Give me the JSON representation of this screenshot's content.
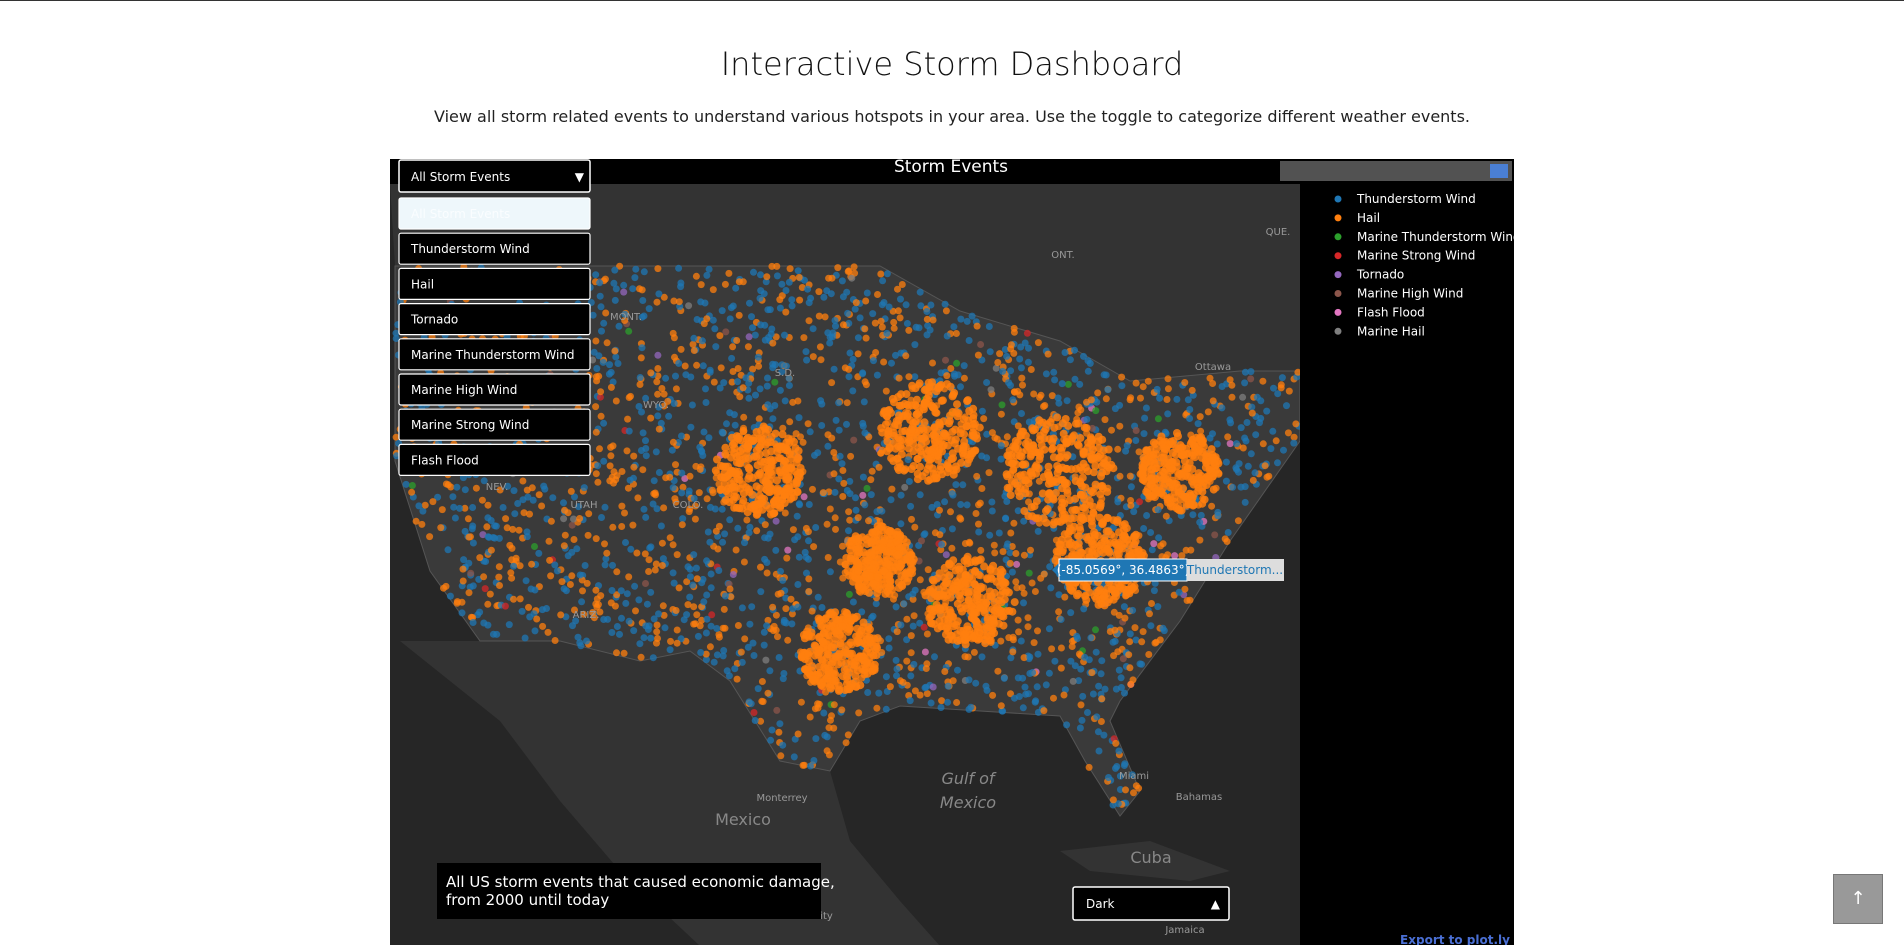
{
  "page": {
    "title": "Interactive Storm Dashboard",
    "subtitle": "View all storm related events to understand various hotspots in your area. Use the toggle to categorize different weather events.",
    "map": {
      "title": "Storm Events",
      "dropdown": {
        "selected": "All Storm Events",
        "options": [
          "All Storm Events",
          "Thunderstorm Wind",
          "Hail",
          "Tornado",
          "Marine Thunderstorm Wind",
          "Marine High Wind",
          "Marine Strong Wind",
          "Flash Flood"
        ]
      },
      "legend": [
        {
          "name": "Thunderstorm Wind",
          "color": "#1f77b4"
        },
        {
          "name": "Hail",
          "color": "#ff7f0e"
        },
        {
          "name": "Marine Thunderstorm Wind",
          "color": "#2ca02c"
        },
        {
          "name": "Marine Strong Wind",
          "color": "#d62728"
        },
        {
          "name": "Tornado",
          "color": "#9467bd"
        },
        {
          "name": "Marine High Wind",
          "color": "#8c564b"
        },
        {
          "name": "Flash Flood",
          "color": "#e377c2"
        },
        {
          "name": "Marine Hail",
          "color": "#7f7f7f"
        }
      ],
      "tooltip": {
        "coords": "(-85.0569°, 36.4863°)",
        "label": "Thunderstorm..."
      },
      "annotation": [
        "All US storm events that caused economic damage,",
        " from 2000 until today"
      ],
      "theme": "Dark",
      "export": "Export to plot.ly",
      "place_labels": [
        "ONT.",
        "QUE.",
        "MONT.",
        "S.D.",
        "WYO.",
        "NEV.",
        "UTAH",
        "COLO.",
        "ARIZ.",
        "Ottawa",
        "Gulf of",
        "Mexico",
        "Mexico",
        "Monterrey",
        "Cuba",
        "Miami",
        "Bahamas",
        "Jamaica",
        "Mexico City"
      ]
    }
  }
}
